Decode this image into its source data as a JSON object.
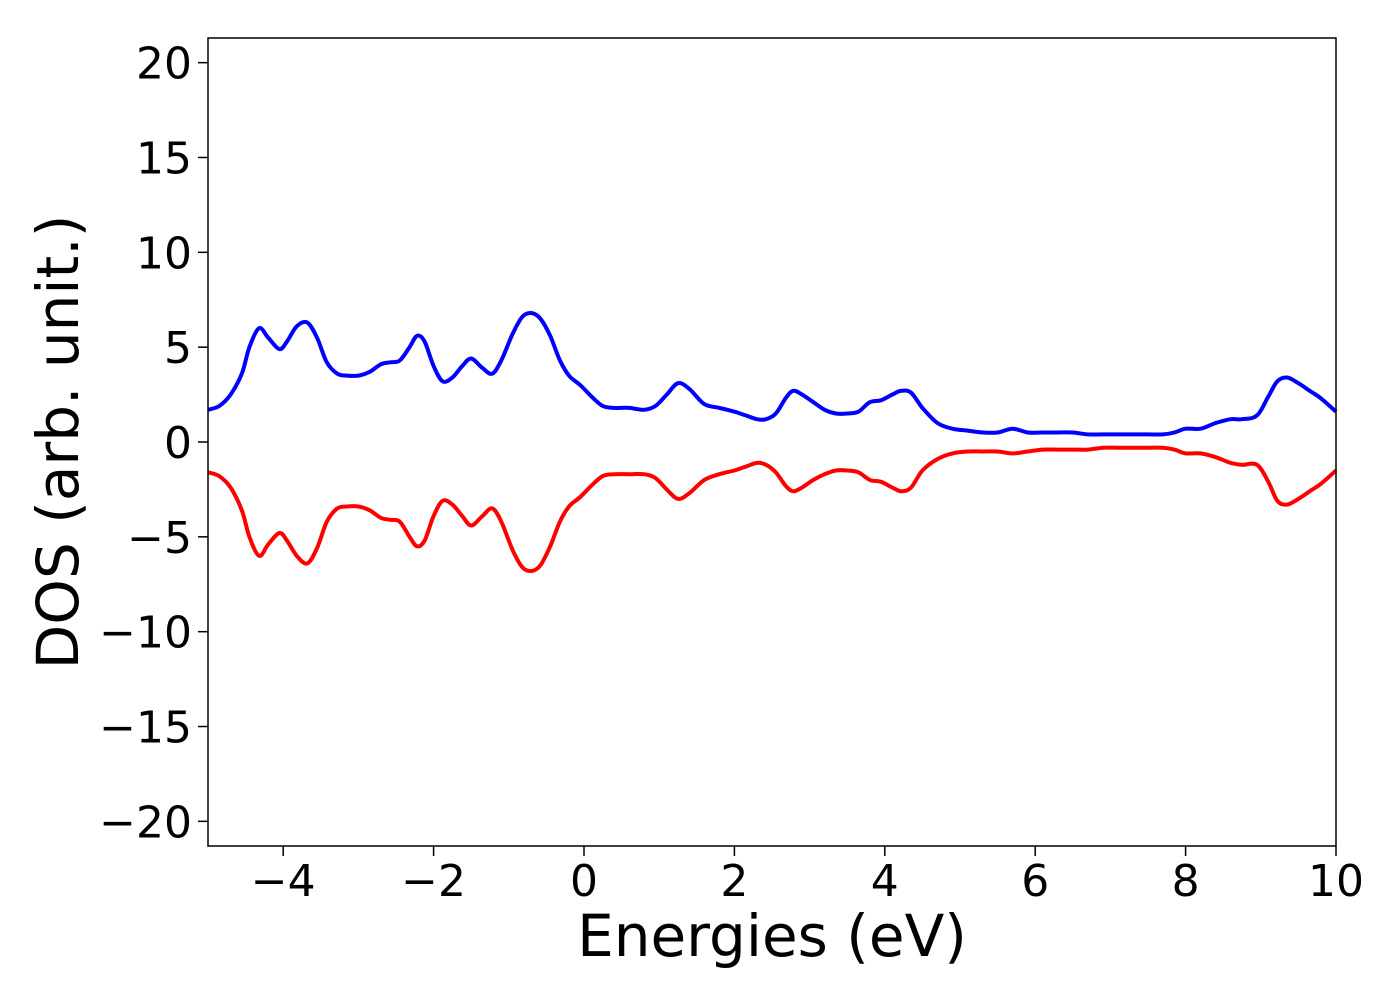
{
  "chart_data": {
    "type": "line",
    "title": "",
    "xlabel": "Energies (eV)",
    "ylabel": "DOS (arb. unit.)",
    "xlim": [
      -5,
      10
    ],
    "ylim": [
      -21.3,
      21.3
    ],
    "grid": false,
    "legend": "none",
    "xticks": [
      -4,
      -2,
      0,
      2,
      4,
      6,
      8,
      10
    ],
    "yticks": [
      -20,
      -15,
      -10,
      -5,
      0,
      5,
      10,
      15,
      20
    ],
    "xtick_labels": [
      "−4",
      "−2",
      "0",
      "2",
      "4",
      "6",
      "8",
      "10"
    ],
    "ytick_labels": [
      "−20",
      "−15",
      "−10",
      "−5",
      "0",
      "5",
      "10",
      "15",
      "20"
    ],
    "x": [
      -5.0,
      -4.85,
      -4.7,
      -4.55,
      -4.45,
      -4.32,
      -4.2,
      -4.05,
      -3.95,
      -3.82,
      -3.68,
      -3.55,
      -3.42,
      -3.28,
      -3.15,
      -3.0,
      -2.85,
      -2.7,
      -2.58,
      -2.45,
      -2.32,
      -2.22,
      -2.12,
      -2.0,
      -1.88,
      -1.75,
      -1.62,
      -1.5,
      -1.35,
      -1.22,
      -1.1,
      -0.95,
      -0.82,
      -0.7,
      -0.58,
      -0.45,
      -0.32,
      -0.2,
      -0.05,
      0.1,
      0.25,
      0.4,
      0.6,
      0.8,
      0.95,
      1.1,
      1.25,
      1.4,
      1.6,
      1.8,
      2.0,
      2.15,
      2.3,
      2.42,
      2.55,
      2.68,
      2.78,
      2.9,
      3.05,
      3.2,
      3.35,
      3.5,
      3.65,
      3.8,
      3.95,
      4.1,
      4.22,
      4.35,
      4.5,
      4.7,
      4.9,
      5.1,
      5.3,
      5.5,
      5.7,
      5.9,
      6.1,
      6.3,
      6.5,
      6.7,
      6.9,
      7.1,
      7.3,
      7.5,
      7.7,
      7.85,
      8.0,
      8.2,
      8.4,
      8.6,
      8.75,
      8.95,
      9.1,
      9.22,
      9.35,
      9.5,
      9.65,
      9.8,
      10.0
    ],
    "series": [
      {
        "color": "#0000ff",
        "values": [
          1.7,
          1.9,
          2.5,
          3.6,
          5.0,
          6.0,
          5.5,
          4.9,
          5.3,
          6.1,
          6.3,
          5.5,
          4.2,
          3.6,
          3.5,
          3.5,
          3.7,
          4.1,
          4.2,
          4.3,
          5.0,
          5.6,
          5.3,
          4.0,
          3.2,
          3.4,
          4.0,
          4.4,
          3.9,
          3.6,
          4.3,
          5.7,
          6.6,
          6.8,
          6.5,
          5.6,
          4.3,
          3.5,
          3.0,
          2.4,
          1.9,
          1.8,
          1.8,
          1.7,
          1.9,
          2.5,
          3.1,
          2.8,
          2.0,
          1.8,
          1.6,
          1.4,
          1.2,
          1.2,
          1.5,
          2.3,
          2.7,
          2.5,
          2.1,
          1.7,
          1.5,
          1.5,
          1.6,
          2.1,
          2.2,
          2.5,
          2.7,
          2.6,
          1.8,
          1.0,
          0.7,
          0.6,
          0.5,
          0.5,
          0.7,
          0.5,
          0.5,
          0.5,
          0.5,
          0.4,
          0.4,
          0.4,
          0.4,
          0.4,
          0.4,
          0.5,
          0.7,
          0.7,
          1.0,
          1.2,
          1.2,
          1.4,
          2.4,
          3.2,
          3.4,
          3.1,
          2.7,
          2.3,
          1.6
        ]
      },
      {
        "color": "#ff0000",
        "values": [
          -1.6,
          -1.8,
          -2.4,
          -3.6,
          -5.0,
          -6.0,
          -5.4,
          -4.8,
          -5.2,
          -6.0,
          -6.4,
          -5.6,
          -4.2,
          -3.5,
          -3.4,
          -3.4,
          -3.6,
          -4.0,
          -4.1,
          -4.2,
          -5.0,
          -5.5,
          -5.2,
          -3.9,
          -3.1,
          -3.3,
          -3.9,
          -4.4,
          -3.9,
          -3.5,
          -4.2,
          -5.7,
          -6.6,
          -6.8,
          -6.5,
          -5.5,
          -4.2,
          -3.4,
          -2.9,
          -2.3,
          -1.8,
          -1.7,
          -1.7,
          -1.7,
          -1.9,
          -2.5,
          -3.0,
          -2.7,
          -2.0,
          -1.7,
          -1.5,
          -1.3,
          -1.1,
          -1.2,
          -1.6,
          -2.3,
          -2.6,
          -2.4,
          -2.0,
          -1.7,
          -1.5,
          -1.5,
          -1.6,
          -2.0,
          -2.1,
          -2.4,
          -2.6,
          -2.4,
          -1.5,
          -0.9,
          -0.6,
          -0.5,
          -0.5,
          -0.5,
          -0.6,
          -0.5,
          -0.4,
          -0.4,
          -0.4,
          -0.4,
          -0.3,
          -0.3,
          -0.3,
          -0.3,
          -0.3,
          -0.4,
          -0.6,
          -0.6,
          -0.8,
          -1.1,
          -1.2,
          -1.2,
          -2.1,
          -3.1,
          -3.3,
          -3.0,
          -2.6,
          -2.2,
          -1.5
        ]
      }
    ]
  }
}
